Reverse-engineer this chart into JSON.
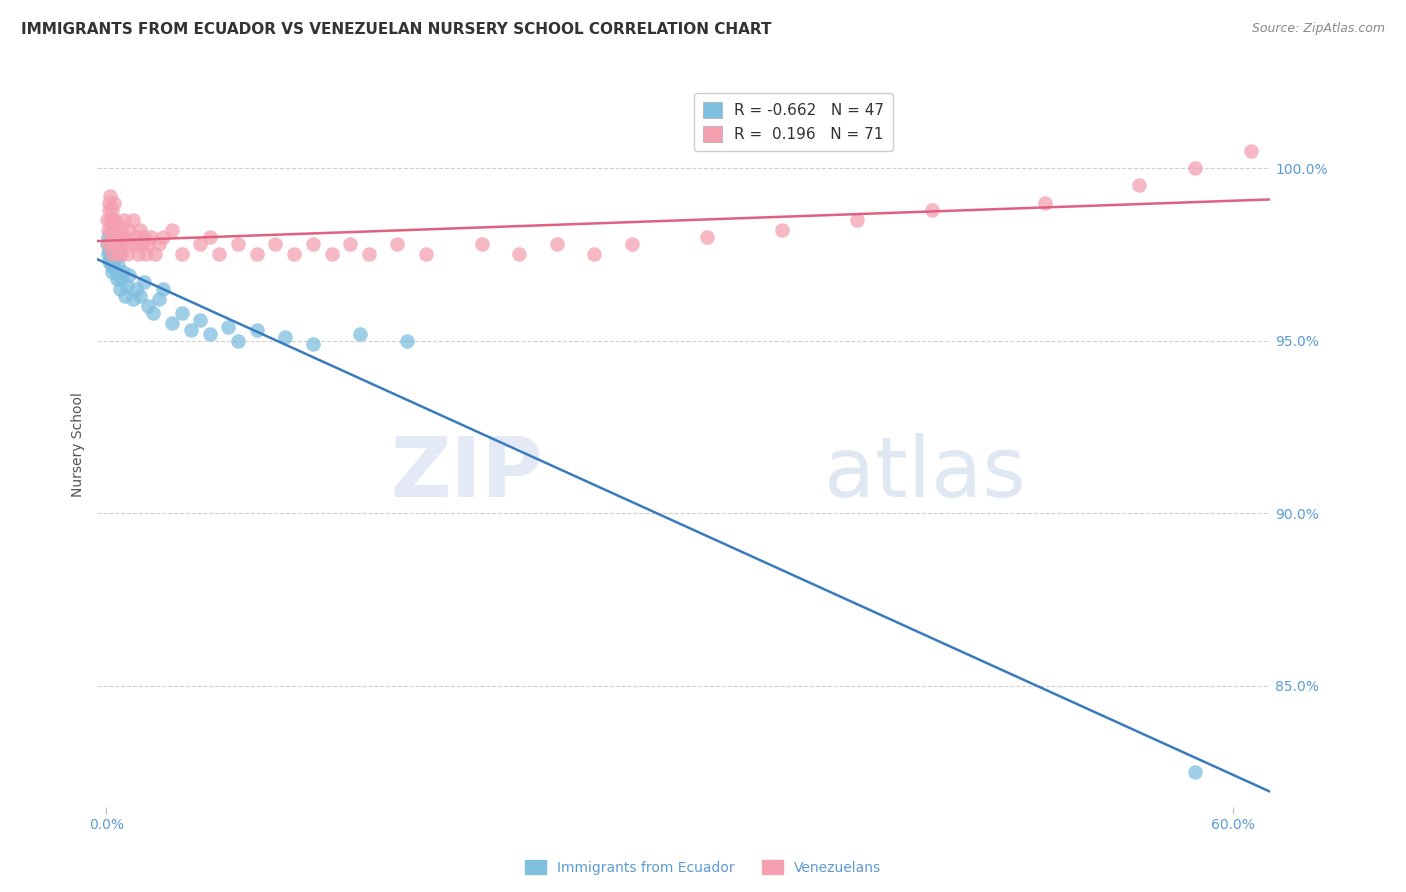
{
  "title": "IMMIGRANTS FROM ECUADOR VS VENEZUELAN NURSERY SCHOOL CORRELATION CHART",
  "source": "Source: ZipAtlas.com",
  "ylabel": "Nursery School",
  "series": [
    {
      "name": "Immigrants from Ecuador",
      "R": -0.662,
      "N": 47,
      "color": "#7fbfdf",
      "line_color": "#3a7abf",
      "x": [
        0.05,
        0.08,
        0.1,
        0.12,
        0.15,
        0.18,
        0.2,
        0.22,
        0.25,
        0.28,
        0.3,
        0.33,
        0.35,
        0.38,
        0.4,
        0.45,
        0.5,
        0.55,
        0.6,
        0.65,
        0.7,
        0.8,
        0.9,
        1.0,
        1.1,
        1.2,
        1.4,
        1.6,
        1.8,
        2.0,
        2.2,
        2.5,
        2.8,
        3.0,
        3.5,
        4.0,
        4.5,
        5.0,
        5.5,
        6.5,
        7.0,
        8.0,
        9.5,
        11.0,
        13.5,
        16.0,
        58.0
      ],
      "y": [
        97.8,
        97.5,
        98.0,
        97.3,
        97.6,
        97.9,
        98.1,
        97.2,
        97.5,
        97.8,
        97.0,
        97.3,
        97.6,
        97.9,
        97.1,
        97.4,
        97.0,
        96.8,
        97.2,
        97.5,
        96.5,
        96.8,
        97.0,
        96.3,
        96.6,
        96.9,
        96.2,
        96.5,
        96.3,
        96.7,
        96.0,
        95.8,
        96.2,
        96.5,
        95.5,
        95.8,
        95.3,
        95.6,
        95.2,
        95.4,
        95.0,
        95.3,
        95.1,
        94.9,
        95.2,
        95.0,
        82.5
      ]
    },
    {
      "name": "Venezuelans",
      "R": 0.196,
      "N": 71,
      "color": "#f4a0b0",
      "line_color": "#e06080",
      "x": [
        0.05,
        0.08,
        0.1,
        0.12,
        0.15,
        0.18,
        0.2,
        0.22,
        0.25,
        0.28,
        0.3,
        0.33,
        0.35,
        0.38,
        0.4,
        0.45,
        0.5,
        0.55,
        0.6,
        0.65,
        0.7,
        0.75,
        0.8,
        0.85,
        0.9,
        0.95,
        1.0,
        1.1,
        1.2,
        1.3,
        1.4,
        1.5,
        1.6,
        1.7,
        1.8,
        1.9,
        2.0,
        2.1,
        2.2,
        2.4,
        2.6,
        2.8,
        3.0,
        3.5,
        4.0,
        5.0,
        5.5,
        6.0,
        7.0,
        8.0,
        9.0,
        10.0,
        11.0,
        12.0,
        13.0,
        14.0,
        15.5,
        17.0,
        20.0,
        22.0,
        24.0,
        26.0,
        28.0,
        32.0,
        36.0,
        40.0,
        44.0,
        50.0,
        55.0,
        58.0,
        61.0
      ],
      "y": [
        98.5,
        97.8,
        98.2,
        99.0,
        98.8,
        99.2,
        98.5,
        97.8,
        98.2,
        97.5,
        98.8,
        98.0,
        98.5,
        97.8,
        99.0,
        98.5,
        97.8,
        98.2,
        97.5,
        98.0,
        97.8,
        98.3,
        97.5,
        98.0,
        97.8,
        98.5,
        98.0,
        97.5,
        98.2,
        97.8,
        98.5,
        97.8,
        98.0,
        97.5,
        98.2,
        97.8,
        98.0,
        97.5,
        97.8,
        98.0,
        97.5,
        97.8,
        98.0,
        98.2,
        97.5,
        97.8,
        98.0,
        97.5,
        97.8,
        97.5,
        97.8,
        97.5,
        97.8,
        97.5,
        97.8,
        97.5,
        97.8,
        97.5,
        97.8,
        97.5,
        97.8,
        97.5,
        97.8,
        98.0,
        98.2,
        98.5,
        98.8,
        99.0,
        99.5,
        100.0,
        100.5
      ]
    }
  ],
  "xlim": [
    -0.5,
    62.0
  ],
  "ylim": [
    81.5,
    102.5
  ],
  "yticks": [
    85.0,
    90.0,
    95.0,
    100.0
  ],
  "xticks": [
    0.0,
    60.0
  ],
  "xticklabels": [
    "0.0%",
    "60.0%"
  ],
  "yticklabels": [
    "85.0%",
    "90.0%",
    "95.0%",
    "100.0%"
  ],
  "grid_color": "#d0d0d0",
  "background_color": "#ffffff",
  "title_fontsize": 11,
  "axis_label_color": "#5b9bd5",
  "watermark_zip": "ZIP",
  "watermark_atlas": "atlas"
}
